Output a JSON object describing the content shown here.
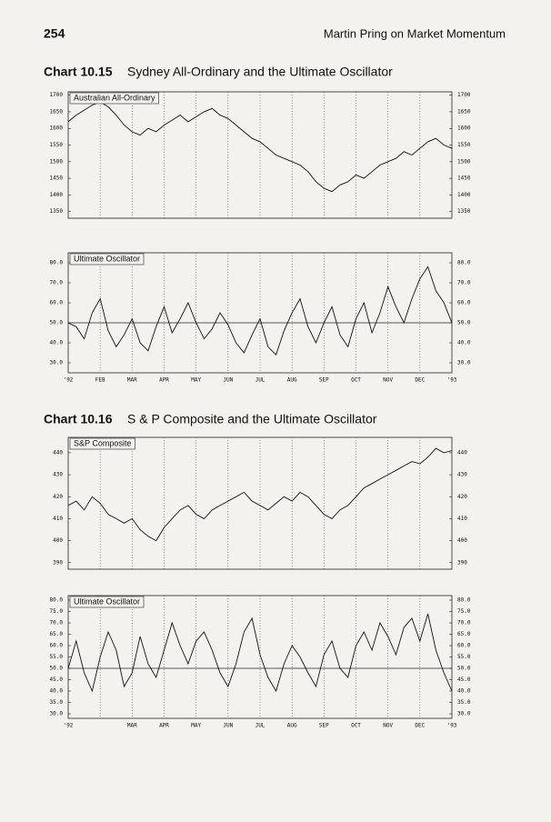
{
  "header": {
    "page": "254",
    "running_title": "Martin Pring on Market Momentum"
  },
  "figures": [
    {
      "number": "Chart 10.15",
      "title": "Sydney All-Ordinary and the Ultimate Oscillator"
    },
    {
      "number": "Chart 10.16",
      "title": "S & P Composite and the Ultimate Oscillator"
    }
  ],
  "chart_data": [
    {
      "type": "line",
      "title": "Australian All-Ordinary",
      "color": "#111111",
      "grid": true,
      "values": [
        1620,
        1640,
        1655,
        1670,
        1680,
        1665,
        1640,
        1610,
        1590,
        1580,
        1600,
        1590,
        1610,
        1625,
        1640,
        1620,
        1635,
        1650,
        1660,
        1640,
        1630,
        1610,
        1590,
        1570,
        1560,
        1540,
        1520,
        1510,
        1500,
        1490,
        1470,
        1440,
        1420,
        1410,
        1430,
        1440,
        1460,
        1450,
        1470,
        1490,
        1500,
        1510,
        1530,
        1520,
        1540,
        1560,
        1570,
        1550,
        1540
      ],
      "ylim": [
        1330,
        1710
      ],
      "yticks": [
        1350,
        1400,
        1450,
        1500,
        1550,
        1600,
        1650,
        1700
      ]
    },
    {
      "type": "line",
      "title": "Ultimate Oscillator",
      "color": "#111111",
      "grid": true,
      "reference_line": 50,
      "categories": [
        "'92",
        null,
        null,
        null,
        "FEB",
        null,
        null,
        null,
        "MAR",
        null,
        null,
        null,
        "APR",
        null,
        null,
        null,
        "MAY",
        null,
        null,
        null,
        "JUN",
        null,
        null,
        null,
        "JUL",
        null,
        null,
        null,
        "AUG",
        null,
        null,
        null,
        "SEP",
        null,
        null,
        null,
        "OCT",
        null,
        null,
        null,
        "NOV",
        null,
        null,
        null,
        "DEC",
        null,
        null,
        null,
        "'93"
      ],
      "values": [
        50,
        48,
        42,
        55,
        62,
        46,
        38,
        44,
        52,
        40,
        36,
        48,
        58,
        45,
        52,
        60,
        50,
        42,
        47,
        55,
        49,
        40,
        35,
        44,
        52,
        38,
        34,
        46,
        55,
        62,
        48,
        40,
        50,
        58,
        44,
        38,
        52,
        60,
        45,
        55,
        68,
        58,
        50,
        62,
        72,
        78,
        66,
        60,
        50
      ],
      "ylim": [
        25,
        85
      ],
      "yticks": [
        {
          "value": 30,
          "label": "30.0"
        },
        {
          "value": 40,
          "label": "40.0"
        },
        {
          "value": 50,
          "label": "50.0"
        },
        {
          "value": 60,
          "label": "60.0"
        },
        {
          "value": 70,
          "label": "70.0"
        },
        {
          "value": 80,
          "label": "80.0"
        }
      ]
    },
    {
      "type": "line",
      "title": "S&P Composite",
      "color": "#111111",
      "grid": true,
      "values": [
        416,
        418,
        414,
        420,
        417,
        412,
        410,
        408,
        410,
        405,
        402,
        400,
        406,
        410,
        414,
        416,
        412,
        410,
        414,
        416,
        418,
        420,
        422,
        418,
        416,
        414,
        417,
        420,
        418,
        422,
        420,
        416,
        412,
        410,
        414,
        416,
        420,
        424,
        426,
        428,
        430,
        432,
        434,
        436,
        435,
        438,
        442,
        440,
        441
      ],
      "ylim": [
        387,
        447
      ],
      "yticks": [
        390,
        400,
        410,
        420,
        430,
        440
      ]
    },
    {
      "type": "line",
      "title": "Ultimate Oscillator",
      "color": "#111111",
      "grid": true,
      "reference_line": 50,
      "categories": [
        "'92",
        null,
        null,
        null,
        null,
        null,
        null,
        null,
        "MAR",
        null,
        null,
        null,
        "APR",
        null,
        null,
        null,
        "MAY",
        null,
        null,
        null,
        "JUN",
        null,
        null,
        null,
        "JUL",
        null,
        null,
        null,
        "AUG",
        null,
        null,
        null,
        "SEP",
        null,
        null,
        null,
        "OCT",
        null,
        null,
        null,
        "NOV",
        null,
        null,
        null,
        "DEC",
        null,
        null,
        null,
        "'93"
      ],
      "values": [
        50,
        62,
        48,
        40,
        55,
        66,
        58,
        42,
        48,
        64,
        52,
        46,
        58,
        70,
        60,
        52,
        62,
        66,
        58,
        48,
        42,
        52,
        66,
        72,
        56,
        46,
        40,
        52,
        60,
        55,
        48,
        42,
        56,
        62,
        50,
        46,
        60,
        66,
        58,
        70,
        64,
        56,
        68,
        72,
        62,
        74,
        58,
        48,
        40
      ],
      "ylim": [
        28,
        82
      ],
      "yticks": [
        {
          "value": 30,
          "label": "30.0"
        },
        {
          "value": 35,
          "label": "35.0"
        },
        {
          "value": 40,
          "label": "40.0"
        },
        {
          "value": 45,
          "label": "45.0"
        },
        {
          "value": 50,
          "label": "50.0"
        },
        {
          "value": 55,
          "label": "55.0"
        },
        {
          "value": 60,
          "label": "60.0"
        },
        {
          "value": 65,
          "label": "65.0"
        },
        {
          "value": 70,
          "label": "70.0"
        },
        {
          "value": 75,
          "label": "75.0"
        },
        {
          "value": 80,
          "label": "80.0"
        }
      ]
    }
  ]
}
